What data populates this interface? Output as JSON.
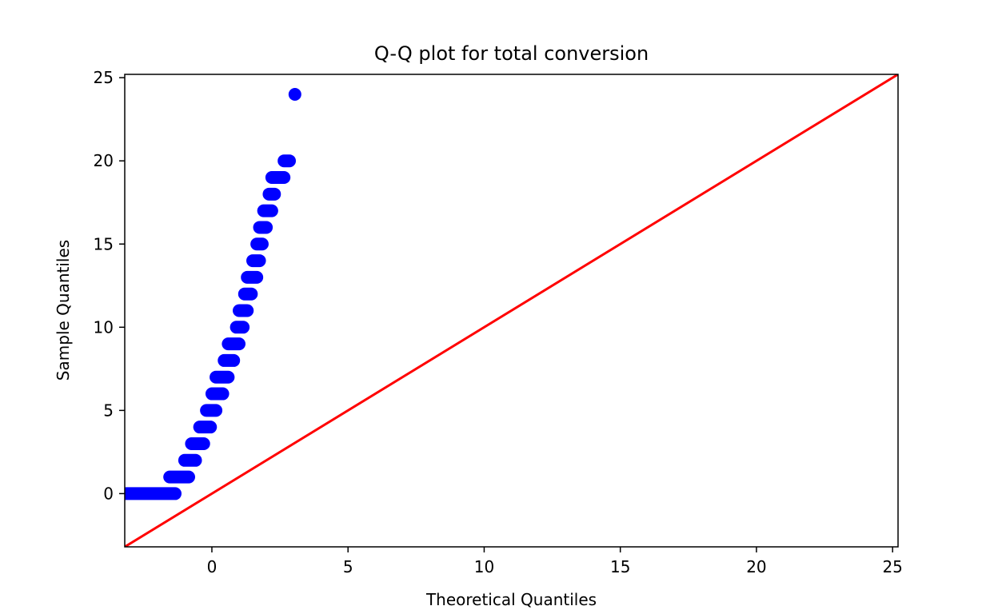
{
  "chart_data": {
    "type": "scatter",
    "title": "Q-Q plot for total conversion",
    "xlabel": "Theoretical Quantiles",
    "ylabel": "Sample Quantiles",
    "xlim": [
      -3.2,
      25.2
    ],
    "ylim": [
      -3.2,
      25.2
    ],
    "x_ticks": [
      0,
      5,
      10,
      15,
      20,
      25
    ],
    "y_ticks": [
      0,
      5,
      10,
      15,
      20,
      25
    ],
    "x_tick_labels": [
      "0",
      "5",
      "10",
      "15",
      "20",
      "25"
    ],
    "y_tick_labels": [
      "0",
      "5",
      "10",
      "15",
      "20",
      "25"
    ],
    "grid": false,
    "series": [
      {
        "marker_color": "#0000ff",
        "points": [
          {
            "x_min": -3.15,
            "x_max": -1.35,
            "y": 0
          },
          {
            "x_min": -1.55,
            "x_max": -0.85,
            "y": 1
          },
          {
            "x_min": -1.0,
            "x_max": -0.6,
            "y": 2
          },
          {
            "x_min": -0.75,
            "x_max": -0.3,
            "y": 3
          },
          {
            "x_min": -0.45,
            "x_max": -0.05,
            "y": 4
          },
          {
            "x_min": -0.2,
            "x_max": 0.15,
            "y": 5
          },
          {
            "x_min": 0.0,
            "x_max": 0.4,
            "y": 6
          },
          {
            "x_min": 0.15,
            "x_max": 0.6,
            "y": 7
          },
          {
            "x_min": 0.45,
            "x_max": 0.8,
            "y": 8
          },
          {
            "x_min": 0.6,
            "x_max": 1.0,
            "y": 9
          },
          {
            "x_min": 0.9,
            "x_max": 1.15,
            "y": 10
          },
          {
            "x_min": 1.0,
            "x_max": 1.3,
            "y": 11
          },
          {
            "x_min": 1.2,
            "x_max": 1.45,
            "y": 12
          },
          {
            "x_min": 1.3,
            "x_max": 1.65,
            "y": 13
          },
          {
            "x_min": 1.5,
            "x_max": 1.75,
            "y": 14
          },
          {
            "x_min": 1.65,
            "x_max": 1.85,
            "y": 15
          },
          {
            "x_min": 1.75,
            "x_max": 2.0,
            "y": 16
          },
          {
            "x_min": 1.9,
            "x_max": 2.2,
            "y": 17
          },
          {
            "x_min": 2.1,
            "x_max": 2.3,
            "y": 18
          },
          {
            "x_min": 2.2,
            "x_max": 2.65,
            "y": 19
          },
          {
            "x_min": 2.65,
            "x_max": 2.85,
            "y": 20
          },
          {
            "x_min": 3.05,
            "x_max": 3.05,
            "y": 24
          }
        ]
      },
      {
        "type": "line",
        "color": "#ff0000",
        "x": [
          -3.2,
          25.2
        ],
        "y": [
          -3.2,
          25.2
        ]
      }
    ]
  }
}
